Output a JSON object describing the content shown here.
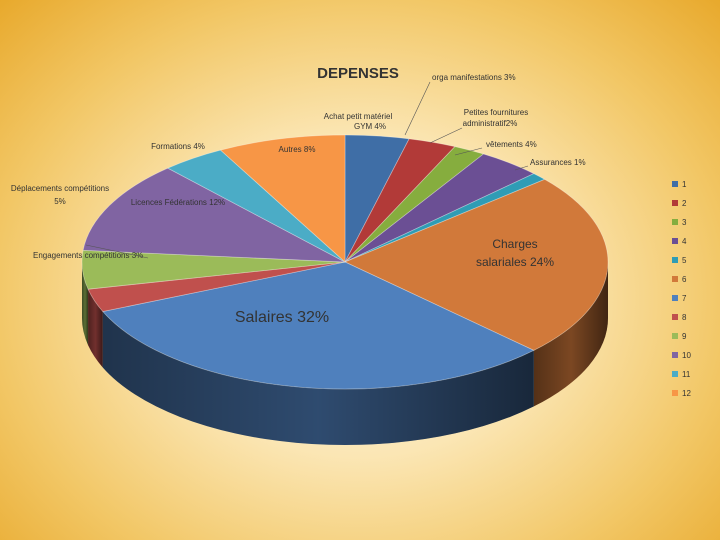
{
  "chart_data": {
    "type": "pie",
    "title": "DEPENSES",
    "slices": [
      {
        "name": "1",
        "label": "Achat petit matériel GYM 4%",
        "value": 4,
        "color": "#3f6ea6"
      },
      {
        "name": "2",
        "label": "orga manifestations 3%",
        "value": 3,
        "color": "#b23a38"
      },
      {
        "name": "3",
        "label": "Petites fournitures administratif2%",
        "value": 2,
        "color": "#86ad3e"
      },
      {
        "name": "4",
        "label": "vêtements 4%",
        "value": 4,
        "color": "#6b4f94"
      },
      {
        "name": "5",
        "label": "Assurances 1%",
        "value": 1,
        "color": "#2f9cb5"
      },
      {
        "name": "6",
        "label": "Charges salariales 24%",
        "value": 24,
        "color": "#d1793a"
      },
      {
        "name": "7",
        "label": "Salaires 32%",
        "value": 32,
        "color": "#4f80bd"
      },
      {
        "name": "8",
        "label": "Engagements compétitions 3%",
        "value": 3,
        "color": "#c0504d"
      },
      {
        "name": "9",
        "label": "Déplacements compétitions 5%",
        "value": 5,
        "color": "#9bbb59"
      },
      {
        "name": "10",
        "label": "Licences Fédérations 12%",
        "value": 12,
        "color": "#8064a2"
      },
      {
        "name": "11",
        "label": "Formations 4%",
        "value": 4,
        "color": "#4bacc6"
      },
      {
        "name": "12",
        "label": "Autres 8%",
        "value": 8,
        "color": "#f79646"
      }
    ],
    "legend": [
      "1",
      "2",
      "3",
      "4",
      "5",
      "6",
      "7",
      "8",
      "9",
      "10",
      "11",
      "12"
    ],
    "legend_position": "right"
  }
}
